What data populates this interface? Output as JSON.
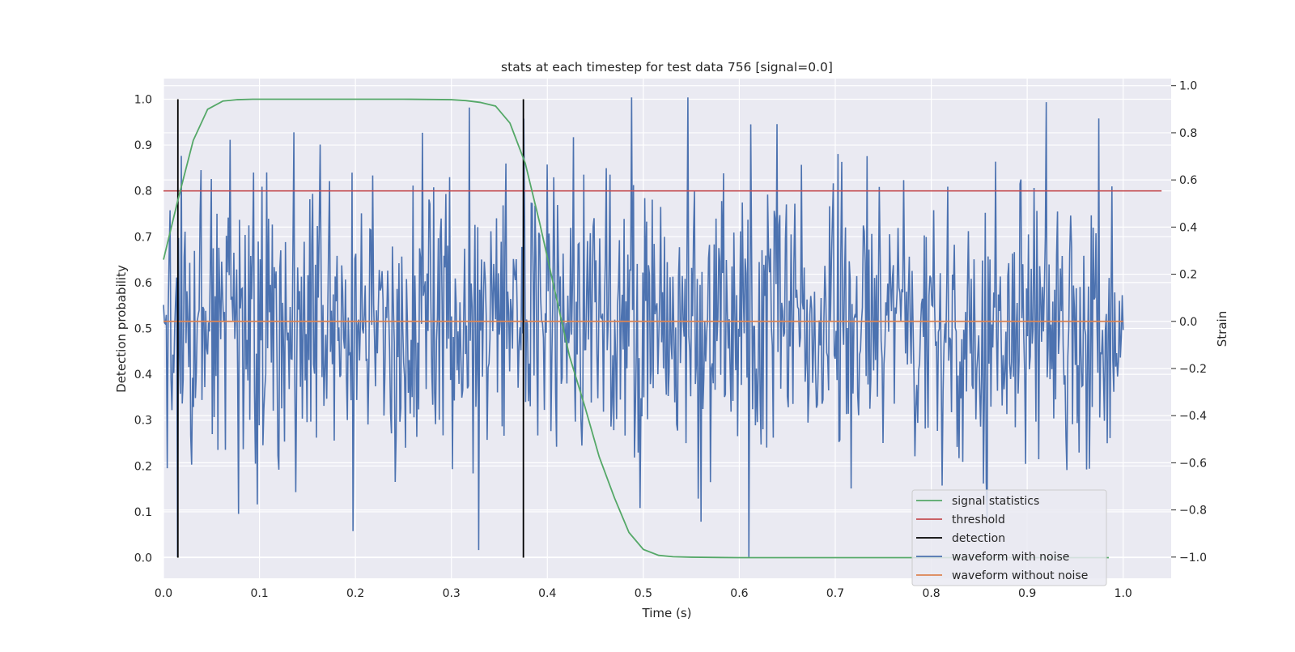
{
  "chart_data": {
    "type": "line",
    "title": "stats at each timestep for test data 756 [signal=0.0]",
    "xlabel": "Time (s)",
    "ylabel_left": "Detection probability",
    "ylabel_right": "Strain",
    "xlim": [
      0.0,
      1.05
    ],
    "ylim_left": [
      -0.045,
      1.045
    ],
    "ylim_right": [
      -1.09,
      1.03
    ],
    "x_ticks": [
      "0.0",
      "0.1",
      "0.2",
      "0.3",
      "0.4",
      "0.5",
      "0.6",
      "0.7",
      "0.8",
      "0.9",
      "1.0"
    ],
    "y_left_ticks": [
      "0.0",
      "0.1",
      "0.2",
      "0.3",
      "0.4",
      "0.5",
      "0.6",
      "0.7",
      "0.8",
      "0.9",
      "1.0"
    ],
    "y_right_ticks": [
      "−1.0",
      "−0.8",
      "−0.6",
      "−0.4",
      "−0.2",
      "0.0",
      "0.2",
      "0.4",
      "0.6",
      "0.8",
      "1.0"
    ],
    "grid": true,
    "legend_position": "lower-right",
    "series": [
      {
        "name": "signal statistics",
        "axis": "left",
        "color": "#55a868",
        "x": [
          0.0,
          0.015,
          0.031,
          0.046,
          0.062,
          0.077,
          0.093,
          0.108,
          0.124,
          0.15,
          0.2,
          0.25,
          0.3,
          0.315,
          0.33,
          0.346,
          0.361,
          0.377,
          0.392,
          0.408,
          0.423,
          0.439,
          0.454,
          0.47,
          0.485,
          0.5,
          0.516,
          0.531,
          0.55,
          0.6,
          0.7,
          0.8,
          0.9,
          0.985
        ],
        "y": [
          0.65,
          0.78,
          0.91,
          0.978,
          0.996,
          0.999,
          1.0,
          1.0,
          1.0,
          1.0,
          1.0,
          1.0,
          0.999,
          0.997,
          0.993,
          0.985,
          0.948,
          0.86,
          0.73,
          0.58,
          0.44,
          0.33,
          0.22,
          0.13,
          0.055,
          0.018,
          0.005,
          0.002,
          0.001,
          0.0,
          0.0,
          0.0,
          0.0,
          0.0
        ]
      },
      {
        "name": "threshold",
        "axis": "left",
        "color": "#c44e52",
        "x": [
          0.0,
          1.04
        ],
        "y": [
          0.8,
          0.8
        ]
      },
      {
        "name": "detection",
        "axis": "left",
        "color": "#000000",
        "segments": [
          {
            "x": 0.015,
            "y": [
              0.0,
              1.0
            ]
          },
          {
            "x": 0.375,
            "y": [
              0.0,
              1.0
            ]
          }
        ]
      },
      {
        "name": "waveform with noise",
        "axis": "right",
        "color": "#4c72b0",
        "x_range": [
          0.0,
          1.0
        ],
        "points": 1024,
        "y_range": [
          -1.0,
          1.0
        ],
        "noise_std": 0.3,
        "peaks": [
          {
            "x": 0.015,
            "y": -1.0
          },
          {
            "x": 0.069,
            "y": 0.77
          },
          {
            "x": 0.163,
            "y": 0.75
          },
          {
            "x": 0.27,
            "y": 0.8
          },
          {
            "x": 0.328,
            "y": -0.97
          },
          {
            "x": 0.375,
            "y": 0.86
          },
          {
            "x": 0.488,
            "y": 0.95
          },
          {
            "x": 0.61,
            "y": -1.0
          },
          {
            "x": 0.703,
            "y": 0.71
          },
          {
            "x": 0.92,
            "y": 0.93
          },
          {
            "x": 0.197,
            "y": -0.89
          },
          {
            "x": 0.56,
            "y": -0.85
          }
        ]
      },
      {
        "name": "waveform without noise",
        "axis": "right",
        "color": "#dd8452",
        "x": [
          0.0,
          1.0
        ],
        "y": [
          0.0,
          0.0
        ]
      }
    ]
  }
}
